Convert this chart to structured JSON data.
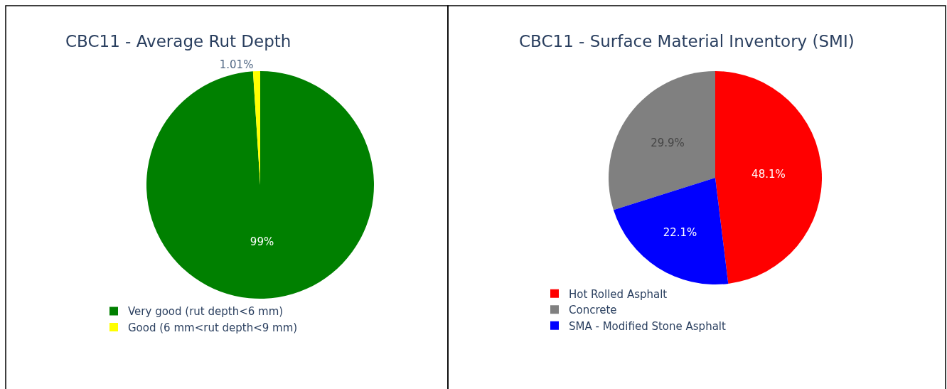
{
  "chart_data": [
    {
      "type": "pie",
      "title": "CBC11 - Average Rut Depth",
      "categories": [
        "Very good (rut depth<6 mm)",
        "Good (6 mm<rut depth<9 mm)"
      ],
      "values": [
        99,
        1.01
      ],
      "value_labels": [
        "99%",
        "1.01%"
      ],
      "colors": [
        "#008000",
        "#ffff00"
      ],
      "legend": "bottom left"
    },
    {
      "type": "pie",
      "title": "CBC11 - Surface Material Inventory (SMI)",
      "categories": [
        "Hot Rolled Asphalt",
        "Concrete",
        "SMA - Modified Stone Asphalt"
      ],
      "values": [
        48.1,
        29.9,
        22.1
      ],
      "value_labels": [
        "48.1%",
        "29.9%",
        "22.1%"
      ],
      "colors": [
        "#ff0000",
        "#808080",
        "#0000ff"
      ],
      "legend": "bottom left"
    }
  ]
}
